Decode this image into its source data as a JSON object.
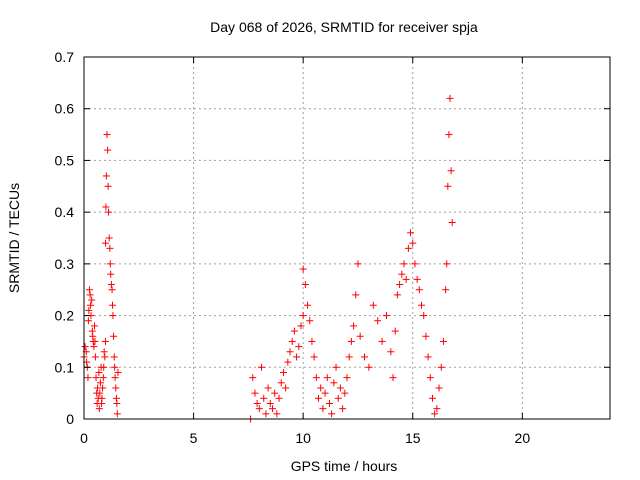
{
  "colors": {
    "series": "#ff0000",
    "grid": "#a0a0a0",
    "frame": "#000000",
    "background": "#ffffff"
  },
  "chart_data": {
    "type": "scatter",
    "title": "Day 068 of 2026, SRMTID for receiver spja",
    "xlabel": "GPS time / hours",
    "ylabel": "SRMTID / TECUs",
    "xlim": [
      0,
      24
    ],
    "ylim": [
      0,
      0.7
    ],
    "grid": true,
    "marker": "+",
    "x_ticks": [
      0,
      5,
      10,
      15,
      20
    ],
    "x_tick_labels": [
      "0",
      "5",
      "10",
      "15",
      "20"
    ],
    "y_ticks": [
      0,
      0.1,
      0.2,
      0.3,
      0.4,
      0.5,
      0.6,
      0.7
    ],
    "y_tick_labels": [
      "0",
      "0.1",
      "0.2",
      "0.3",
      "0.4",
      "0.5",
      "0.6",
      "0.7"
    ],
    "series": [
      {
        "name": "SRMTID",
        "segments": [
          {
            "x": [
              0.0,
              0.05,
              0.1,
              0.12,
              0.15,
              0.18,
              0.2,
              0.22,
              0.25,
              0.28,
              0.3,
              0.32,
              0.35,
              0.38,
              0.4,
              0.42,
              0.45,
              0.48,
              0.5,
              0.52,
              0.55,
              0.58,
              0.6,
              0.62,
              0.65,
              0.68,
              0.7,
              0.72,
              0.75,
              0.78,
              0.8,
              0.82,
              0.85,
              0.88,
              0.9,
              0.92,
              0.95,
              0.98
            ],
            "y": [
              0.12,
              0.14,
              0.13,
              0.11,
              0.1,
              0.08,
              0.19,
              0.21,
              0.25,
              0.24,
              0.22,
              0.2,
              0.23,
              0.17,
              0.16,
              0.15,
              0.14,
              0.18,
              0.15,
              0.12,
              0.08,
              0.05,
              0.03,
              0.06,
              0.04,
              0.09,
              0.02,
              0.05,
              0.07,
              0.1,
              0.03,
              0.04,
              0.06,
              0.08,
              0.1,
              0.13,
              0.12,
              0.15
            ]
          },
          {
            "x": [
              0.98,
              1.0,
              1.02,
              1.05,
              1.08,
              1.1,
              1.12,
              1.15,
              1.18,
              1.2,
              1.22,
              1.25,
              1.28,
              1.3,
              1.32,
              1.35,
              1.38,
              1.4,
              1.42,
              1.45,
              1.48,
              1.5,
              1.52,
              1.55
            ],
            "y": [
              0.34,
              0.41,
              0.47,
              0.55,
              0.52,
              0.45,
              0.4,
              0.35,
              0.33,
              0.3,
              0.28,
              0.26,
              0.25,
              0.22,
              0.2,
              0.16,
              0.12,
              0.1,
              0.08,
              0.06,
              0.04,
              0.03,
              0.01,
              0.09
            ]
          },
          {
            "x": [
              7.6,
              7.7,
              7.8,
              7.9,
              8.0,
              8.1,
              8.2,
              8.3,
              8.4,
              8.5,
              8.6,
              8.7,
              8.8,
              8.9,
              9.0,
              9.1,
              9.2,
              9.3,
              9.4,
              9.5,
              9.6,
              9.7,
              9.8,
              9.9,
              10.0
            ],
            "y": [
              0.0,
              0.08,
              0.05,
              0.03,
              0.02,
              0.1,
              0.04,
              0.01,
              0.06,
              0.03,
              0.02,
              0.05,
              0.01,
              0.04,
              0.07,
              0.09,
              0.06,
              0.11,
              0.13,
              0.15,
              0.17,
              0.12,
              0.14,
              0.18,
              0.2
            ]
          },
          {
            "x": [
              10.0,
              10.1,
              10.2,
              10.3,
              10.4,
              10.5,
              10.6,
              10.7,
              10.8,
              10.9,
              11.0,
              11.1,
              11.2,
              11.3,
              11.4,
              11.5,
              11.6,
              11.7,
              11.8,
              11.9,
              12.0,
              12.1,
              12.2,
              12.3,
              12.4,
              12.5
            ],
            "y": [
              0.29,
              0.26,
              0.22,
              0.19,
              0.15,
              0.12,
              0.08,
              0.04,
              0.06,
              0.02,
              0.05,
              0.08,
              0.03,
              0.01,
              0.07,
              0.1,
              0.04,
              0.06,
              0.02,
              0.05,
              0.08,
              0.12,
              0.15,
              0.18,
              0.24,
              0.3
            ]
          },
          {
            "x": [
              12.6,
              12.8,
              13.0,
              13.2,
              13.4,
              13.6,
              13.8,
              14.0,
              14.1,
              14.2,
              14.3,
              14.4,
              14.5,
              14.6,
              14.7,
              14.8,
              14.9,
              15.0,
              15.1,
              15.2,
              15.3,
              15.4,
              15.5,
              15.6,
              15.7,
              15.8,
              15.9,
              16.0
            ],
            "y": [
              0.16,
              0.12,
              0.1,
              0.22,
              0.19,
              0.15,
              0.2,
              0.13,
              0.08,
              0.17,
              0.24,
              0.26,
              0.28,
              0.3,
              0.27,
              0.33,
              0.36,
              0.34,
              0.3,
              0.27,
              0.25,
              0.22,
              0.2,
              0.16,
              0.12,
              0.08,
              0.04,
              0.01
            ]
          },
          {
            "x": [
              16.1,
              16.2,
              16.3,
              16.4,
              16.5,
              16.55,
              16.6,
              16.65,
              16.7,
              16.75,
              16.8
            ],
            "y": [
              0.02,
              0.06,
              0.1,
              0.15,
              0.25,
              0.3,
              0.45,
              0.55,
              0.62,
              0.48,
              0.38
            ]
          }
        ]
      }
    ]
  }
}
